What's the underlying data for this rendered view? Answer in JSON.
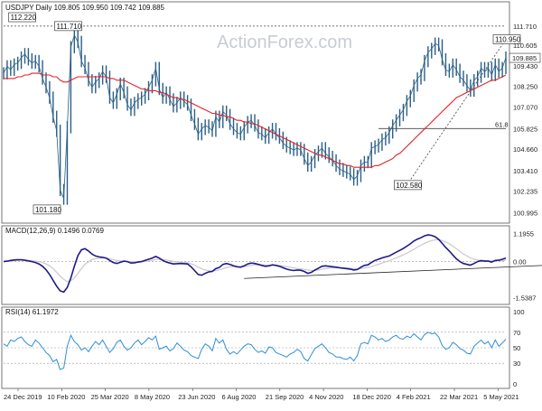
{
  "watermark": "ActionForex.com",
  "colors": {
    "price": "#2a5f86",
    "ma": "#e0242b",
    "macd": "#1e1a8a",
    "signal": "#c9c9c9",
    "rsi": "#2e8ed8",
    "refline": "#444444",
    "trendline": "#222222"
  },
  "x_labels": [
    "24 Dec 2019",
    "10 Feb 2020",
    "25 Mar 2020",
    "8 May 2020",
    "23 Jun 2020",
    "6 Aug 2020",
    "21 Sep 2020",
    "4 Nov 2020",
    "18 Dec 2020",
    "4 Feb 2021",
    "22 Mar 2021",
    "5 May 2021"
  ],
  "chart_data": [
    {
      "type": "line",
      "title": "USDJPY Daily 109.805 109.950 109.742 109.885",
      "y_ticks": [
        "111.710",
        "110.605",
        "109.430",
        "108.250",
        "107.070",
        "105.825",
        "104.660",
        "103.410",
        "102.235",
        "100.995"
      ],
      "ylim": [
        100.5,
        113.0
      ],
      "current_value": "109.885",
      "reference_lines": [
        {
          "value": 111.71,
          "label": "111.710",
          "style": "dashed"
        },
        {
          "value": 105.825,
          "label": "61.8",
          "style": "solid"
        }
      ],
      "annotations": [
        {
          "label": "112.220",
          "x_index": 5,
          "value": 112.22
        },
        {
          "label": "111.710",
          "x_index": 18,
          "value": 111.71
        },
        {
          "label": "101.180",
          "x_index": 12,
          "value": 101.18
        },
        {
          "label": "102.580",
          "x_index": 114,
          "value": 102.58
        },
        {
          "label": "110.950",
          "x_index": 142,
          "value": 110.95
        }
      ],
      "series": [
        {
          "values": [
            109.0,
            109.4,
            109.2,
            109.5,
            109.6,
            109.9,
            110.1,
            109.8,
            109.6,
            109.7,
            109.4,
            108.7,
            108.2,
            107.6,
            106.5,
            105.7,
            102.3,
            101.8,
            105.9,
            110.5,
            111.2,
            110.8,
            109.7,
            109.3,
            108.6,
            108.2,
            108.5,
            108.7,
            109.1,
            108.8,
            107.6,
            107.3,
            107.8,
            108.4,
            107.9,
            107.2,
            106.9,
            107.3,
            107.5,
            107.6,
            107.8,
            108.2,
            108.6,
            109.3,
            108.1,
            107.6,
            107.9,
            107.5,
            107.1,
            107.3,
            107.6,
            107.4,
            107.2,
            106.6,
            106.1,
            105.5,
            105.8,
            106.0,
            105.9,
            105.7,
            106.5,
            106.2,
            106.8,
            106.6,
            106.1,
            105.8,
            105.6,
            105.5,
            105.9,
            106.2,
            106.3,
            106.0,
            105.6,
            105.5,
            105.3,
            105.6,
            105.8,
            105.5,
            105.3,
            105.0,
            104.8,
            104.7,
            104.6,
            104.7,
            104.6,
            104.1,
            103.7,
            103.9,
            104.3,
            104.5,
            104.7,
            104.4,
            104.2,
            104.0,
            103.7,
            103.5,
            103.4,
            103.3,
            103.2,
            102.9,
            103.1,
            103.7,
            103.9,
            103.9,
            104.7,
            104.8,
            104.9,
            105.2,
            105.3,
            105.6,
            106.0,
            106.3,
            106.6,
            106.9,
            107.4,
            107.7,
            108.3,
            108.7,
            108.9,
            109.7,
            110.2,
            110.4,
            110.7,
            110.6,
            109.8,
            109.2,
            109.1,
            109.5,
            109.2,
            108.8,
            108.6,
            108.3,
            108.0,
            108.6,
            108.8,
            109.3,
            109.1,
            109.3,
            108.9,
            109.5,
            109.1,
            109.3,
            109.9
          ],
          "name": "USDJPY"
        },
        {
          "values": [
            108.7,
            108.7,
            108.7,
            108.7,
            108.8,
            108.8,
            108.9,
            108.9,
            109.0,
            109.0,
            109.0,
            108.9,
            108.9,
            108.9,
            108.8,
            108.8,
            108.6,
            108.5,
            108.5,
            108.6,
            108.7,
            108.8,
            108.8,
            108.8,
            108.8,
            108.8,
            108.8,
            108.8,
            108.8,
            108.8,
            108.7,
            108.7,
            108.6,
            108.6,
            108.6,
            108.5,
            108.4,
            108.3,
            108.2,
            108.1,
            108.1,
            108.0,
            108.0,
            108.0,
            107.9,
            107.9,
            107.8,
            107.7,
            107.6,
            107.6,
            107.5,
            107.5,
            107.4,
            107.3,
            107.2,
            107.1,
            107.0,
            106.9,
            106.8,
            106.7,
            106.7,
            106.6,
            106.6,
            106.5,
            106.5,
            106.4,
            106.3,
            106.3,
            106.2,
            106.2,
            106.1,
            106.1,
            106.0,
            105.9,
            105.8,
            105.7,
            105.6,
            105.5,
            105.4,
            105.3,
            105.2,
            105.1,
            105.0,
            104.9,
            104.8,
            104.7,
            104.6,
            104.5,
            104.4,
            104.3,
            104.3,
            104.2,
            104.1,
            104.0,
            103.9,
            103.8,
            103.8,
            103.7,
            103.7,
            103.6,
            103.6,
            103.6,
            103.6,
            103.6,
            103.6,
            103.7,
            103.7,
            103.8,
            103.9,
            104.0,
            104.1,
            104.3,
            104.4,
            104.6,
            104.8,
            105.0,
            105.2,
            105.4,
            105.6,
            105.8,
            106.0,
            106.2,
            106.4,
            106.6,
            106.8,
            107.0,
            107.2,
            107.4,
            107.6,
            107.7,
            107.8,
            107.9,
            108.0,
            108.1,
            108.2,
            108.3,
            108.4,
            108.5,
            108.6,
            108.6,
            108.7,
            108.8,
            108.9
          ],
          "name": "MA"
        }
      ]
    },
    {
      "type": "line",
      "title": "MACD(12,26,9) 0.1496 0.0769",
      "y_ticks": [
        "1.1955",
        "0.00",
        "-1.5387"
      ],
      "ylim": [
        -1.75,
        1.45
      ],
      "zero_label": "0.00",
      "trendline": {
        "from": {
          "x_index": 68,
          "value": -0.72
        },
        "to": {
          "x_index": 165,
          "value": -0.08
        }
      },
      "series": [
        {
          "values": [
            0.0,
            0.02,
            0.05,
            0.07,
            0.08,
            0.08,
            0.06,
            0.03,
            0.0,
            -0.04,
            -0.1,
            -0.2,
            -0.35,
            -0.55,
            -0.8,
            -1.05,
            -1.25,
            -1.3,
            -1.1,
            -0.7,
            -0.2,
            0.25,
            0.5,
            0.55,
            0.45,
            0.32,
            0.24,
            0.2,
            0.18,
            0.15,
            0.05,
            -0.04,
            -0.08,
            -0.03,
            0.02,
            0.0,
            -0.06,
            -0.05,
            -0.02,
            0.0,
            0.05,
            0.1,
            0.15,
            0.22,
            0.15,
            0.05,
            -0.02,
            -0.06,
            -0.1,
            -0.09,
            -0.08,
            -0.09,
            -0.1,
            -0.22,
            -0.38,
            -0.55,
            -0.58,
            -0.5,
            -0.44,
            -0.42,
            -0.3,
            -0.25,
            -0.12,
            -0.08,
            -0.12,
            -0.18,
            -0.22,
            -0.24,
            -0.18,
            -0.1,
            -0.06,
            -0.08,
            -0.12,
            -0.16,
            -0.2,
            -0.18,
            -0.14,
            -0.16,
            -0.2,
            -0.26,
            -0.32,
            -0.36,
            -0.38,
            -0.36,
            -0.37,
            -0.42,
            -0.5,
            -0.46,
            -0.36,
            -0.28,
            -0.2,
            -0.18,
            -0.2,
            -0.22,
            -0.24,
            -0.26,
            -0.28,
            -0.3,
            -0.32,
            -0.36,
            -0.34,
            -0.24,
            -0.16,
            -0.14,
            -0.04,
            0.05,
            0.1,
            0.16,
            0.2,
            0.24,
            0.32,
            0.4,
            0.48,
            0.56,
            0.66,
            0.76,
            0.88,
            0.96,
            1.02,
            1.1,
            1.14,
            1.12,
            1.06,
            0.95,
            0.78,
            0.6,
            0.45,
            0.28,
            0.12,
            0.0,
            -0.08,
            -0.12,
            -0.15,
            -0.08,
            0.0,
            0.04,
            0.02,
            0.02,
            -0.02,
            0.05,
            0.06,
            0.1,
            0.15
          ],
          "name": "MACD"
        },
        {
          "values": [
            0.0,
            0.01,
            0.02,
            0.03,
            0.04,
            0.05,
            0.05,
            0.05,
            0.04,
            0.02,
            0.0,
            -0.04,
            -0.1,
            -0.18,
            -0.3,
            -0.45,
            -0.62,
            -0.76,
            -0.85,
            -0.82,
            -0.7,
            -0.5,
            -0.3,
            -0.12,
            0.0,
            0.08,
            0.12,
            0.14,
            0.15,
            0.15,
            0.13,
            0.09,
            0.05,
            0.03,
            0.02,
            0.01,
            0.0,
            -0.01,
            -0.02,
            -0.01,
            0.01,
            0.03,
            0.06,
            0.09,
            0.1,
            0.09,
            0.07,
            0.04,
            0.01,
            -0.01,
            -0.03,
            -0.04,
            -0.05,
            -0.09,
            -0.15,
            -0.23,
            -0.31,
            -0.36,
            -0.39,
            -0.4,
            -0.38,
            -0.35,
            -0.3,
            -0.25,
            -0.22,
            -0.21,
            -0.21,
            -0.22,
            -0.21,
            -0.19,
            -0.16,
            -0.14,
            -0.14,
            -0.14,
            -0.15,
            -0.16,
            -0.16,
            -0.16,
            -0.17,
            -0.19,
            -0.21,
            -0.24,
            -0.27,
            -0.29,
            -0.31,
            -0.33,
            -0.36,
            -0.38,
            -0.38,
            -0.36,
            -0.33,
            -0.3,
            -0.28,
            -0.27,
            -0.26,
            -0.26,
            -0.26,
            -0.27,
            -0.28,
            -0.3,
            -0.31,
            -0.3,
            -0.27,
            -0.25,
            -0.21,
            -0.16,
            -0.11,
            -0.06,
            -0.01,
            0.04,
            0.1,
            0.16,
            0.22,
            0.29,
            0.36,
            0.44,
            0.53,
            0.62,
            0.7,
            0.78,
            0.85,
            0.9,
            0.93,
            0.93,
            0.9,
            0.84,
            0.76,
            0.66,
            0.55,
            0.44,
            0.33,
            0.24,
            0.16,
            0.1,
            0.07,
            0.06,
            0.05,
            0.04,
            0.03,
            0.03,
            0.03,
            0.04,
            0.06
          ],
          "name": "Signal"
        }
      ]
    },
    {
      "type": "line",
      "title": "RSI(14) 61.1972",
      "y_ticks": [
        "100",
        "70",
        "50",
        "30",
        "0"
      ],
      "ylim": [
        0,
        100
      ],
      "series": [
        {
          "values": [
            55,
            52,
            60,
            58,
            62,
            64,
            58,
            54,
            52,
            60,
            56,
            50,
            44,
            40,
            32,
            35,
            22,
            24,
            52,
            66,
            58,
            54,
            47,
            50,
            45,
            52,
            58,
            54,
            60,
            52,
            44,
            49,
            57,
            60,
            52,
            47,
            50,
            56,
            60,
            54,
            58,
            63,
            60,
            65,
            48,
            50,
            52,
            46,
            49,
            56,
            52,
            47,
            45,
            40,
            38,
            36,
            48,
            55,
            52,
            46,
            62,
            56,
            60,
            48,
            42,
            45,
            42,
            47,
            52,
            55,
            54,
            48,
            44,
            46,
            43,
            51,
            50,
            44,
            42,
            40,
            38,
            42,
            44,
            48,
            45,
            36,
            33,
            41,
            49,
            52,
            55,
            50,
            44,
            42,
            38,
            38,
            36,
            35,
            38,
            33,
            40,
            55,
            57,
            55,
            66,
            64,
            60,
            62,
            58,
            60,
            64,
            66,
            62,
            61,
            65,
            63,
            68,
            64,
            60,
            67,
            70,
            68,
            69,
            64,
            53,
            48,
            50,
            57,
            54,
            49,
            47,
            43,
            42,
            52,
            56,
            60,
            55,
            58,
            50,
            60,
            52,
            56,
            61
          ],
          "name": "RSI"
        }
      ]
    }
  ]
}
